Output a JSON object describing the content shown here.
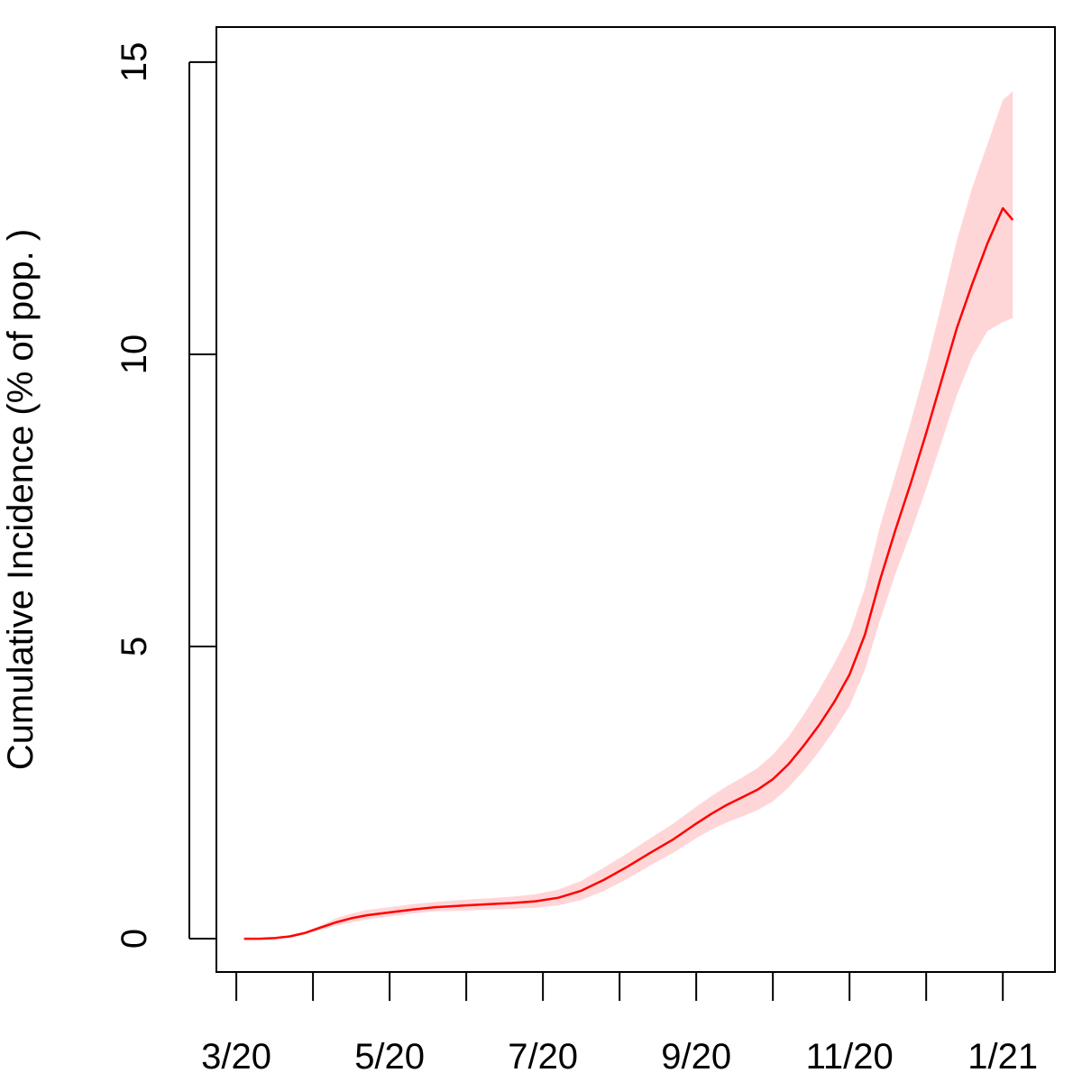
{
  "chart_data": {
    "type": "line",
    "title": "",
    "xlabel": "",
    "ylabel": "Cumulative Incidence (% of pop. )",
    "x_ticks": [
      {
        "label": "3/20",
        "x": 0
      },
      {
        "label": "",
        "x": 1
      },
      {
        "label": "5/20",
        "x": 2
      },
      {
        "label": "",
        "x": 3
      },
      {
        "label": "7/20",
        "x": 4
      },
      {
        "label": "",
        "x": 5
      },
      {
        "label": "9/20",
        "x": 6
      },
      {
        "label": "",
        "x": 7
      },
      {
        "label": "11/20",
        "x": 8
      },
      {
        "label": "",
        "x": 9
      },
      {
        "label": "1/21",
        "x": 10
      }
    ],
    "y_ticks": [
      {
        "label": "0",
        "y": 0
      },
      {
        "label": "5",
        "y": 5
      },
      {
        "label": "10",
        "y": 10
      },
      {
        "label": "15",
        "y": 15
      }
    ],
    "xlim": [
      -0.26,
      10.68
    ],
    "ylim": [
      -0.57,
      15.6
    ],
    "grid": false,
    "line_color": "#ff0000",
    "band_color": "#ffd6d8",
    "series": [
      {
        "x": [
          0.1,
          0.3,
          0.5,
          0.7,
          0.9,
          1.1,
          1.3,
          1.5,
          1.7,
          2.0,
          2.3,
          2.6,
          3.0,
          3.3,
          3.6,
          3.9,
          4.2,
          4.5,
          4.8,
          5.1,
          5.4,
          5.7,
          6.0,
          6.2,
          6.4,
          6.6,
          6.8,
          7.0,
          7.2,
          7.4,
          7.6,
          7.8,
          8.0,
          8.2,
          8.4,
          8.6,
          8.8,
          9.0,
          9.2,
          9.4,
          9.6,
          9.8,
          10.0,
          10.13
        ],
        "y": [
          0,
          0,
          0.01,
          0.04,
          0.1,
          0.19,
          0.28,
          0.35,
          0.4,
          0.45,
          0.5,
          0.54,
          0.57,
          0.59,
          0.61,
          0.64,
          0.7,
          0.82,
          1.01,
          1.23,
          1.47,
          1.7,
          1.97,
          2.14,
          2.29,
          2.42,
          2.55,
          2.73,
          2.98,
          3.3,
          3.65,
          4.05,
          4.52,
          5.2,
          6.15,
          7.0,
          7.8,
          8.65,
          9.55,
          10.45,
          11.2,
          11.9,
          12.5,
          12.3
        ],
        "lower": [
          0,
          0,
          0.01,
          0.03,
          0.08,
          0.15,
          0.22,
          0.28,
          0.33,
          0.38,
          0.43,
          0.47,
          0.48,
          0.5,
          0.51,
          0.53,
          0.57,
          0.66,
          0.82,
          1.02,
          1.25,
          1.47,
          1.72,
          1.87,
          1.99,
          2.09,
          2.2,
          2.35,
          2.58,
          2.87,
          3.2,
          3.57,
          3.98,
          4.6,
          5.46,
          6.25,
          6.95,
          7.7,
          8.5,
          9.3,
          9.95,
          10.4,
          10.55,
          10.62
        ],
        "upper": [
          0,
          0,
          0.01,
          0.05,
          0.12,
          0.23,
          0.35,
          0.43,
          0.49,
          0.54,
          0.59,
          0.63,
          0.67,
          0.69,
          0.72,
          0.76,
          0.84,
          0.99,
          1.22,
          1.46,
          1.72,
          1.97,
          2.26,
          2.44,
          2.61,
          2.76,
          2.92,
          3.15,
          3.45,
          3.83,
          4.25,
          4.71,
          5.22,
          6.0,
          7.07,
          7.95,
          8.85,
          9.8,
          10.85,
          11.95,
          12.85,
          13.6,
          14.35,
          14.5
        ]
      }
    ]
  }
}
